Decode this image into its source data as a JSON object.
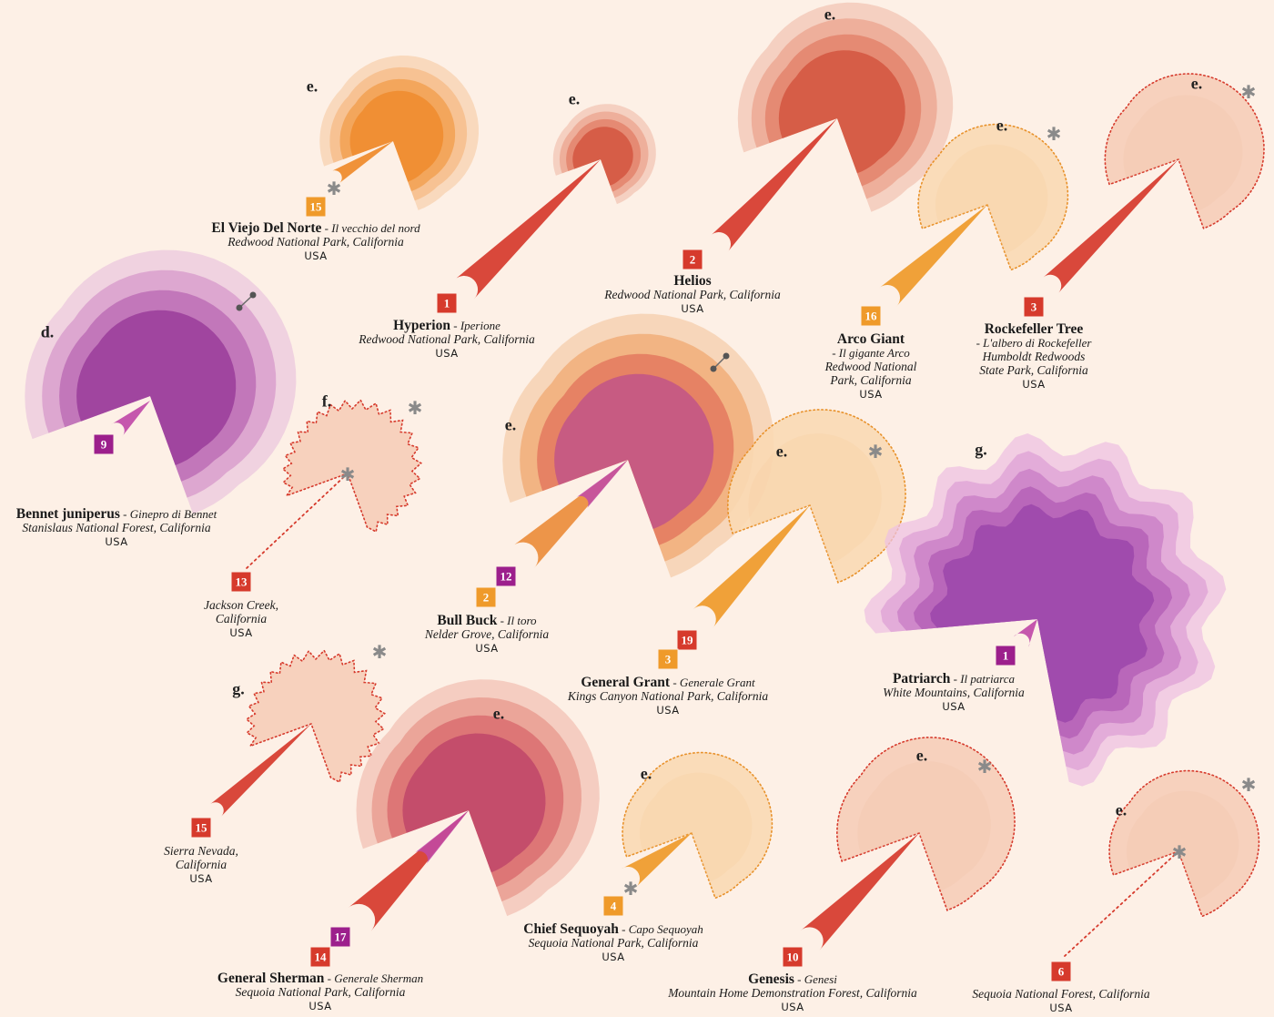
{
  "colors": {
    "red": "#d63a2c",
    "orange": "#ef9a2a",
    "purple": "#9c1f8c",
    "salmon": "#f2bfa3",
    "magenta": "#c04aa8",
    "background": "#fdf0e6"
  },
  "trees": [
    {
      "id": "el-viejo",
      "name": "El Viejo Del Norte",
      "alt": "Il vecchio del nord",
      "place": [
        "Redwood National Park, California"
      ],
      "country": "USA",
      "shape_letter": "e.",
      "badges": [
        {
          "value": "15",
          "color": "orange"
        }
      ],
      "style": "orange-solid"
    },
    {
      "id": "hyperion",
      "name": "Hyperion",
      "alt": "Iperione",
      "place": [
        "Redwood National Park, California"
      ],
      "country": "USA",
      "shape_letter": "e.",
      "badges": [
        {
          "value": "1",
          "color": "red"
        }
      ],
      "style": "red-solid"
    },
    {
      "id": "helios",
      "name": "Helios",
      "alt": "",
      "place": [
        "Redwood National Park, California"
      ],
      "country": "USA",
      "shape_letter": "e.",
      "badges": [
        {
          "value": "2",
          "color": "red"
        }
      ],
      "style": "red-solid"
    },
    {
      "id": "arco",
      "name": "Arco Giant",
      "alt": "Il gigante Arco",
      "place": [
        "Redwood National",
        "Park, California"
      ],
      "country": "USA",
      "shape_letter": "e.",
      "badges": [
        {
          "value": "16",
          "color": "orange"
        }
      ],
      "style": "orange-dotted"
    },
    {
      "id": "rockefeller",
      "name": "Rockefeller Tree",
      "alt": "L'albero di Rockefeller",
      "place": [
        "Humboldt Redwoods",
        "State Park, California"
      ],
      "country": "USA",
      "shape_letter": "e.",
      "badges": [
        {
          "value": "3",
          "color": "red"
        }
      ],
      "style": "red-dotted"
    },
    {
      "id": "bennet",
      "name": "Bennet juniperus",
      "alt": "Ginepro di Bennet",
      "place": [
        "Stanislaus National Forest, California"
      ],
      "country": "USA",
      "shape_letter": "d.",
      "badges": [
        {
          "value": "9",
          "color": "purple"
        }
      ],
      "style": "purple-solid"
    },
    {
      "id": "jackson",
      "name": "",
      "alt": "",
      "place": [
        "Jackson Creek,",
        "California"
      ],
      "country": "USA",
      "shape_letter": "f.",
      "badges": [
        {
          "value": "13",
          "color": "red"
        }
      ],
      "style": "red-dotted"
    },
    {
      "id": "bullbuck",
      "name": "Bull Buck",
      "alt": "Il toro",
      "place": [
        "Nelder Grove, California"
      ],
      "country": "USA",
      "shape_letter": "e.",
      "badges": [
        {
          "value": "12",
          "color": "purple"
        },
        {
          "value": "2",
          "color": "orange"
        }
      ],
      "style": "mixed"
    },
    {
      "id": "grant",
      "name": "General Grant",
      "alt": "Generale Grant",
      "place": [
        "Kings Canyon National Park, California"
      ],
      "country": "USA",
      "shape_letter": "e.",
      "badges": [
        {
          "value": "19",
          "color": "red"
        },
        {
          "value": "3",
          "color": "orange"
        }
      ],
      "style": "orange-dotted"
    },
    {
      "id": "patriarch",
      "name": "Patriarch",
      "alt": "Il patriarca",
      "place": [
        "White Mountains, California"
      ],
      "country": "USA",
      "shape_letter": "g.",
      "badges": [
        {
          "value": "1",
          "color": "purple"
        }
      ],
      "style": "purple-solid"
    },
    {
      "id": "sierra",
      "name": "",
      "alt": "",
      "place": [
        "Sierra Nevada,",
        "California"
      ],
      "country": "USA",
      "shape_letter": "g.",
      "badges": [
        {
          "value": "15",
          "color": "red"
        }
      ],
      "style": "red-dotted"
    },
    {
      "id": "sherman",
      "name": "General Sherman",
      "alt": "Generale Sherman",
      "place": [
        "Sequoia National Park, California"
      ],
      "country": "USA",
      "shape_letter": "e.",
      "badges": [
        {
          "value": "17",
          "color": "purple"
        },
        {
          "value": "14",
          "color": "red"
        }
      ],
      "style": "mixed-red"
    },
    {
      "id": "chief",
      "name": "Chief Sequoyah",
      "alt": "Capo Sequoyah",
      "place": [
        "Sequoia National Park, California"
      ],
      "country": "USA",
      "shape_letter": "e.",
      "badges": [
        {
          "value": "4",
          "color": "orange"
        }
      ],
      "style": "orange-dotted"
    },
    {
      "id": "genesis",
      "name": "Genesis",
      "alt": "Genesi",
      "place": [
        "Mountain Home Demonstration Forest, California"
      ],
      "country": "USA",
      "shape_letter": "e.",
      "badges": [
        {
          "value": "10",
          "color": "red"
        }
      ],
      "style": "red-dotted"
    },
    {
      "id": "sequoia-nf",
      "name": "",
      "alt": "",
      "place": [
        "Sequoia National Forest, California"
      ],
      "country": "USA",
      "shape_letter": "e.",
      "badges": [
        {
          "value": "6",
          "color": "red"
        }
      ],
      "style": "red-dotted"
    }
  ]
}
